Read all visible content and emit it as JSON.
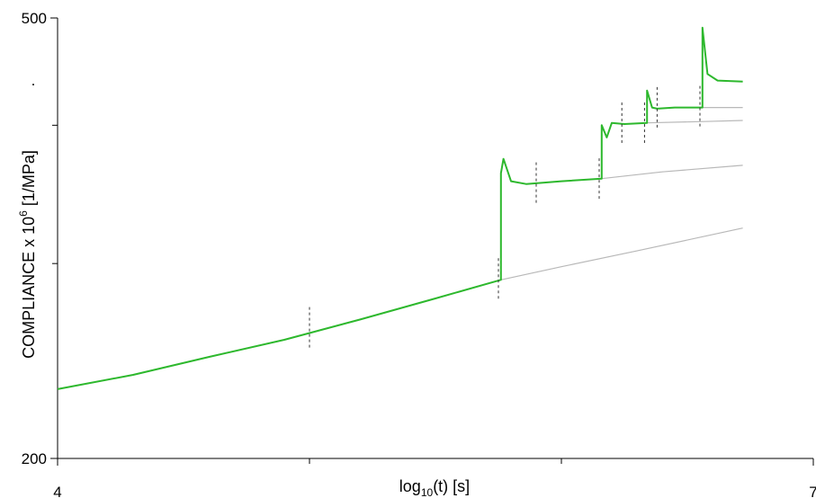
{
  "chart_data": {
    "type": "line",
    "xlabel": "log",
    "xlabel_sub": "10",
    "xlabel_tail": "(t) [s]",
    "ylabel": "COMPLIANCE x 10",
    "ylabel_sup": "6",
    "ylabel_tail": " [1/MPa]",
    "y_dot_label": ".",
    "xlim": [
      4,
      7
    ],
    "ylim": [
      200,
      500
    ],
    "y_scale": "log",
    "x_tick_labels": [
      {
        "value": 4,
        "label": "4"
      },
      {
        "value": 7,
        "label": "7"
      }
    ],
    "x_minor_ticks": [
      5,
      6
    ],
    "y_tick_labels": [
      {
        "value": 200,
        "label": "200"
      },
      {
        "value": 500,
        "label": "500"
      }
    ],
    "y_minor_ticks": [
      300,
      400
    ],
    "grid": false,
    "colors": {
      "measured": "#2db82d",
      "fit": "#b8b8b8",
      "marker": "#333333"
    },
    "series": [
      {
        "role": "measured",
        "x": [
          4.0,
          4.3,
          4.6,
          4.9,
          5.2,
          5.5,
          5.76,
          5.76,
          5.77,
          5.8,
          5.86,
          6.0,
          6.16,
          6.16,
          6.18,
          6.2,
          6.25,
          6.34,
          6.34,
          6.36,
          6.38,
          6.45,
          6.56,
          6.56,
          6.58,
          6.62,
          6.72
        ],
        "y": [
          231,
          238,
          247,
          256,
          267,
          279,
          290,
          362,
          373,
          356,
          354,
          356,
          358,
          400,
          390,
          402,
          401,
          402,
          430,
          415,
          414,
          415,
          415,
          490,
          445,
          439,
          438
        ]
      },
      {
        "role": "fit",
        "x": [
          5.76,
          6.0,
          6.3,
          6.72
        ],
        "y": [
          290,
          298,
          308,
          323
        ]
      },
      {
        "role": "fit",
        "x": [
          6.16,
          6.4,
          6.72
        ],
        "y": [
          358,
          363,
          368
        ]
      },
      {
        "role": "fit",
        "x": [
          6.34,
          6.55,
          6.72
        ],
        "y": [
          402,
          403,
          404
        ]
      },
      {
        "role": "fit",
        "x": [
          6.56,
          6.72
        ],
        "y": [
          415,
          415
        ]
      }
    ],
    "interval_markers": [
      {
        "x": 5.0,
        "y": 262
      },
      {
        "x": 5.75,
        "y": 290
      },
      {
        "x": 5.9,
        "y": 354
      },
      {
        "x": 6.15,
        "y": 357
      },
      {
        "x": 6.24,
        "y": 401
      },
      {
        "x": 6.33,
        "y": 401
      },
      {
        "x": 6.38,
        "y": 414
      },
      {
        "x": 6.55,
        "y": 415
      }
    ]
  }
}
